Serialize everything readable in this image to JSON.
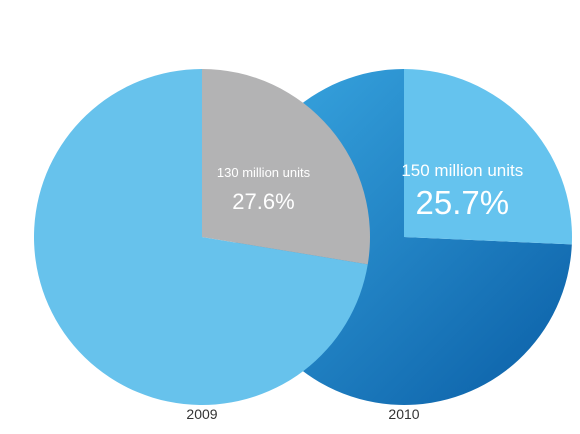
{
  "chart_data": [
    {
      "type": "pie",
      "category": "2009",
      "slices": [
        {
          "label": "130 million units",
          "value": 27.6,
          "value_label": "27.6%",
          "color": "#b3b3b4",
          "highlighted": true
        },
        {
          "label": "",
          "value": 72.4,
          "color": "#67c2ec",
          "highlighted": false
        }
      ]
    },
    {
      "type": "pie",
      "category": "2010",
      "slices": [
        {
          "label": "150 million units",
          "value": 25.7,
          "value_label": "25.7%",
          "color": "#65c3ee",
          "highlighted": true
        },
        {
          "label": "",
          "value": 74.3,
          "color": "#1e85c9",
          "highlighted": false
        }
      ]
    }
  ],
  "colors": {
    "pie_2010_gradient_light": "#3aa8e2",
    "pie_2010_gradient_dark": "#0a5ea6",
    "label_text": "#ffffff",
    "category_text": "#333333"
  }
}
